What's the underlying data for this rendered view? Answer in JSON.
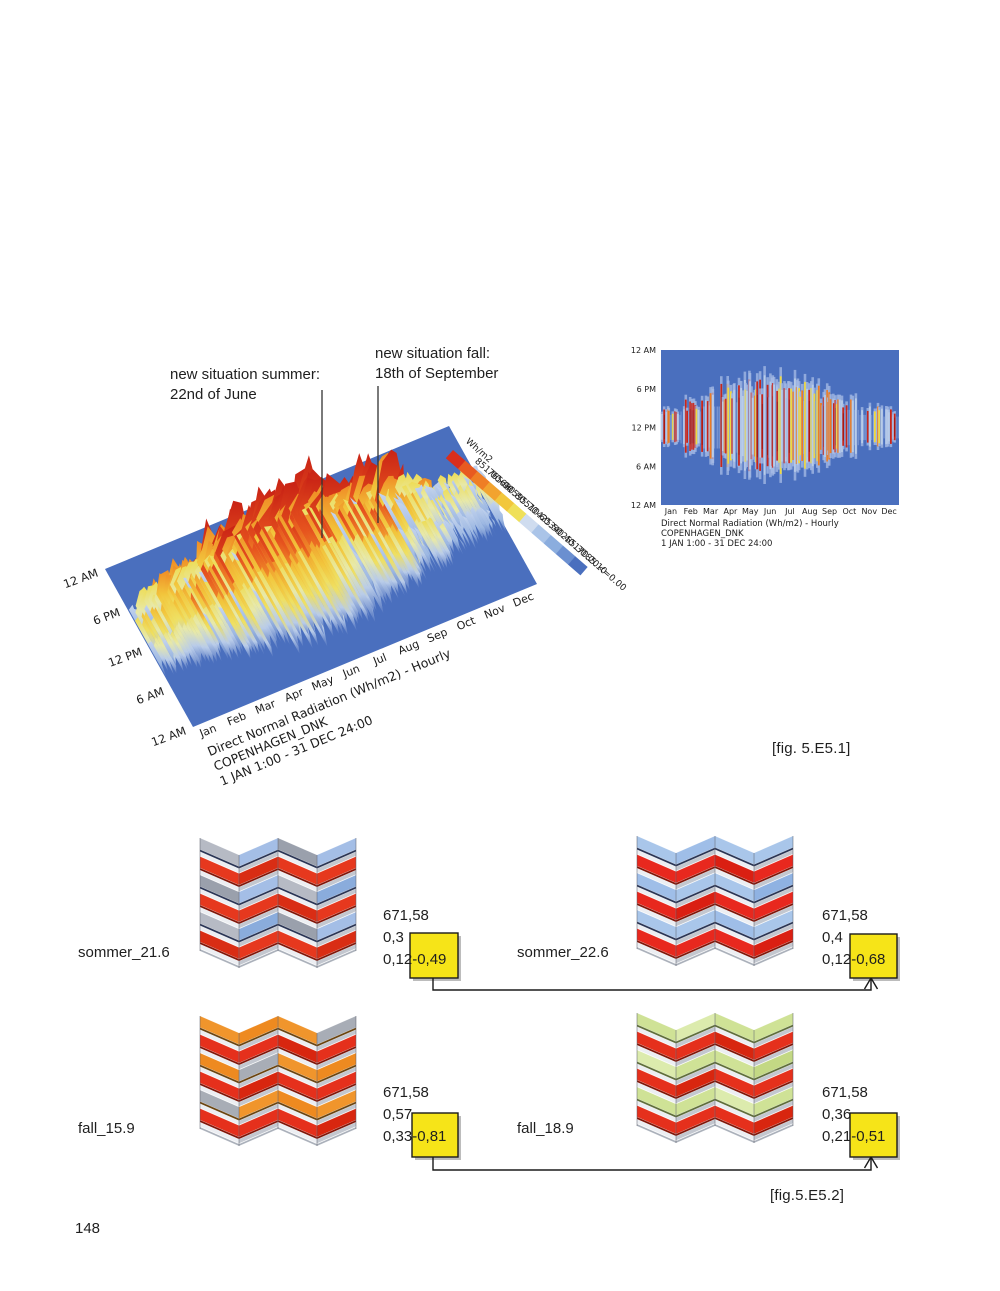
{
  "page": {
    "number": "148"
  },
  "figure1": {
    "caption": "[fig. 5.E5.1]",
    "annotations": {
      "summer": {
        "line1": "new situation summer:",
        "line2": "22nd of June"
      },
      "fall": {
        "line1": "new situation fall:",
        "line2": "18th of September"
      }
    }
  },
  "figure2": {
    "caption": "[fig.5.E5.2]"
  },
  "highlight_color": "#f6e418",
  "chart_data": [
    {
      "type": "heatmap",
      "variant": "3d-surface",
      "title": "Direct Normal Radiation (Wh/m2) - Hourly",
      "subtitle": "COPENHAGEN_DNK",
      "period": "1 JAN 1:00 - 31 DEC 24:00",
      "x_ticks": [
        "Jan",
        "Feb",
        "Mar",
        "Apr",
        "May",
        "Jun",
        "Jul",
        "Aug",
        "Sep",
        "Oct",
        "Nov",
        "Dec"
      ],
      "y_ticks": [
        "12 AM",
        "6 PM",
        "12 PM",
        "6 AM",
        "12 AM"
      ],
      "legend_title": "Wh/m2",
      "legend_levels": [
        "851.00<=",
        "765.90",
        "680.80",
        "595.70",
        "510.60",
        "425.50",
        "340.40",
        "255.30",
        "170.20",
        "85.10",
        "<=0.00"
      ],
      "legend_colors": [
        "#d92e1c",
        "#e85a20",
        "#ef7e25",
        "#f2a32f",
        "#f2c73c",
        "#efe059",
        "#cfdcef",
        "#aac4e8",
        "#8badde",
        "#6b8fd0",
        "#4a6fbe"
      ],
      "plane_color": "#4a6fbe",
      "value_range": [
        0,
        851
      ],
      "monthly_peak_rel": [
        0.5,
        0.68,
        0.85,
        0.97,
        1.0,
        1.0,
        0.98,
        0.95,
        0.85,
        0.6,
        0.35,
        0.3
      ],
      "monthly_day_spread": [
        0.3,
        0.38,
        0.5,
        0.6,
        0.68,
        0.72,
        0.7,
        0.63,
        0.53,
        0.42,
        0.3,
        0.26
      ]
    },
    {
      "type": "heatmap",
      "title": "Direct Normal Radiation (Wh/m2) - Hourly",
      "subtitle": "COPENHAGEN_DNK",
      "period": "1 JAN 1:00 - 31 DEC 24:00",
      "x_ticks": [
        "Jan",
        "Feb",
        "Mar",
        "Apr",
        "May",
        "Jun",
        "Jul",
        "Aug",
        "Sep",
        "Oct",
        "Nov",
        "Dec"
      ],
      "y_ticks": [
        "12 AM",
        "6 PM",
        "12 PM",
        "6 AM",
        "12 AM"
      ],
      "bg_color": "#4a6fbe",
      "monthly_peak_rel": [
        0.5,
        0.68,
        0.85,
        0.97,
        1.0,
        1.0,
        0.98,
        0.95,
        0.85,
        0.6,
        0.35,
        0.3
      ],
      "monthly_day_spread": [
        0.3,
        0.38,
        0.5,
        0.6,
        0.68,
        0.72,
        0.7,
        0.63,
        0.53,
        0.42,
        0.3,
        0.26
      ]
    }
  ],
  "panels": [
    {
      "label": "sommer_21.6",
      "metrics": {
        "line1": "671,58",
        "line2": "0,3",
        "range_prefix": "0,12",
        "highlight": "-0,49"
      },
      "rows": [
        [
          "#b6bac4",
          "#a4bee6",
          "#9aa0ac",
          "#a4bee6"
        ],
        [
          "#e6381e",
          "#d92d14",
          "#e6381e",
          "#e6381e"
        ],
        [
          "#9aa0ac",
          "#a4bee6",
          "#b6bac4",
          "#8aacdc"
        ],
        [
          "#e6381e",
          "#e6381e",
          "#d92d14",
          "#e6381e"
        ],
        [
          "#b6bac4",
          "#8aacdc",
          "#9aa0ac",
          "#a4bee6"
        ],
        [
          "#d92d14",
          "#e6381e",
          "#e6381e",
          "#d92d14"
        ]
      ],
      "shadows": [
        "#2a3555",
        "#801508",
        "#2a3555",
        "#801508",
        "#2a3555",
        "#801508"
      ]
    },
    {
      "label": "sommer_22.6",
      "metrics": {
        "line1": "671,58",
        "line2": "0,4",
        "range_prefix": "0,12",
        "highlight": "-0,68"
      },
      "rows": [
        [
          "#a9c6ea",
          "#9fbee8",
          "#a9c6ea",
          "#a9c6ea"
        ],
        [
          "#e8281e",
          "#e8281e",
          "#da1f12",
          "#e8281e"
        ],
        [
          "#9fbee8",
          "#a9c6ea",
          "#a9c6ea",
          "#8fb2e2"
        ],
        [
          "#e8281e",
          "#da1f12",
          "#e8281e",
          "#e8281e"
        ],
        [
          "#a9c6ea",
          "#a9c6ea",
          "#9fbee8",
          "#a9c6ea"
        ],
        [
          "#e8281e",
          "#e8281e",
          "#e8281e",
          "#da1f12"
        ]
      ],
      "shadows": [
        "#2a3555",
        "#801508",
        "#2a3555",
        "#801508",
        "#2a3555",
        "#801508"
      ]
    },
    {
      "label": "fall_15.9",
      "metrics": {
        "line1": "671,58",
        "line2": "0,57",
        "range_prefix": "0,33",
        "highlight": "-0,81"
      },
      "rows": [
        [
          "#f0952c",
          "#ee8a20",
          "#f0952c",
          "#a8adb6"
        ],
        [
          "#e5301c",
          "#e5301c",
          "#d8260f",
          "#e5301c"
        ],
        [
          "#ee8a20",
          "#a8adb6",
          "#f0952c",
          "#ee8a20"
        ],
        [
          "#e5301c",
          "#d8260f",
          "#e5301c",
          "#e5301c"
        ],
        [
          "#a8adb6",
          "#f0952c",
          "#ee8a20",
          "#f0952c"
        ],
        [
          "#e5301c",
          "#e5301c",
          "#e5301c",
          "#d8260f"
        ]
      ],
      "shadows": [
        "#6a4410",
        "#801508",
        "#6a4410",
        "#801508",
        "#6a4410",
        "#801508"
      ]
    },
    {
      "label": "fall_18.9",
      "metrics": {
        "line1": "671,58",
        "line2": "0,36",
        "range_prefix": "0,21",
        "highlight": "-0,51"
      },
      "rows": [
        [
          "#cfe296",
          "#dcebad",
          "#cfe296",
          "#cfe296"
        ],
        [
          "#e5301c",
          "#e5301c",
          "#d8260f",
          "#e5301c"
        ],
        [
          "#dcebad",
          "#cfe296",
          "#cfe296",
          "#c3d884"
        ],
        [
          "#e5301c",
          "#d8260f",
          "#e5301c",
          "#e5301c"
        ],
        [
          "#cfe296",
          "#cfe296",
          "#dcebad",
          "#cfe296"
        ],
        [
          "#e5301c",
          "#e5301c",
          "#e5301c",
          "#d8260f"
        ]
      ],
      "shadows": [
        "#5f6e3a",
        "#801508",
        "#5f6e3a",
        "#801508",
        "#5f6e3a",
        "#801508"
      ]
    }
  ]
}
